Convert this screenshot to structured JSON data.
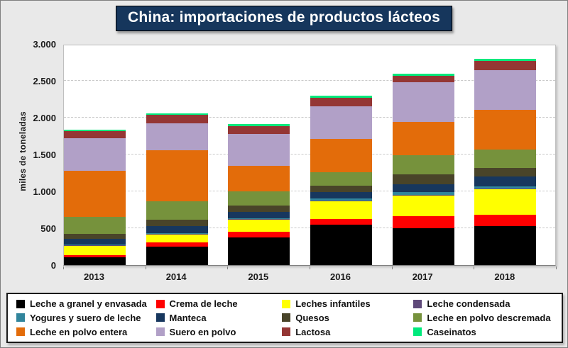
{
  "title": "China: importaciones de productos lácteos",
  "chart_data": {
    "type": "bar",
    "stacked": true,
    "title": "China: importaciones de productos lácteos",
    "ylabel": "miles de toneladas",
    "xlabel": "",
    "ylim": [
      0,
      3000
    ],
    "ytick_values": [
      0,
      500,
      1000,
      1500,
      2000,
      2500,
      3000
    ],
    "ytick_labels": [
      "0",
      "500",
      "1.000",
      "1.500",
      "2.000",
      "2.500",
      "3.000"
    ],
    "grid": "dashed-horizontal",
    "legend_position": "bottom",
    "categories": [
      "2013",
      "2014",
      "2015",
      "2016",
      "2017",
      "2018"
    ],
    "series": [
      {
        "name": "Leche a granel y envasada",
        "color": "#000000",
        "values": [
          105,
          250,
          375,
          550,
          500,
          530
        ]
      },
      {
        "name": "Crema de leche",
        "color": "#ff0000",
        "values": [
          30,
          60,
          75,
          75,
          160,
          155
        ]
      },
      {
        "name": "Leches infantiles",
        "color": "#ffff00",
        "values": [
          125,
          105,
          165,
          240,
          280,
          340
        ]
      },
      {
        "name": "Leche condensada",
        "color": "#5f497a",
        "values": [
          10,
          10,
          10,
          15,
          15,
          10
        ]
      },
      {
        "name": "Yogures y suero de leche",
        "color": "#31859c",
        "values": [
          10,
          10,
          10,
          25,
          40,
          30
        ]
      },
      {
        "name": "Manteca",
        "color": "#17375e",
        "values": [
          75,
          95,
          85,
          85,
          105,
          135
        ]
      },
      {
        "name": "Quesos",
        "color": "#494429",
        "values": [
          70,
          85,
          85,
          90,
          130,
          115
        ]
      },
      {
        "name": "Leche en polvo descremada",
        "color": "#76923c",
        "values": [
          225,
          250,
          200,
          185,
          260,
          250
        ]
      },
      {
        "name": "Leche en polvo entera",
        "color": "#e36c0a",
        "values": [
          630,
          690,
          345,
          450,
          450,
          540
        ]
      },
      {
        "name": "Suero en polvo",
        "color": "#b1a0c7",
        "values": [
          445,
          365,
          425,
          440,
          540,
          540
        ]
      },
      {
        "name": "Lactosa",
        "color": "#943634",
        "values": [
          95,
          115,
          115,
          115,
          90,
          125
        ]
      },
      {
        "name": "Caseinatos",
        "color": "#00e97c",
        "values": [
          15,
          20,
          20,
          30,
          30,
          30
        ]
      }
    ]
  },
  "colors": {
    "background": "#e9e9e9",
    "title_bg": "#16365c",
    "title_text": "#ffffff",
    "plot_bg": "#ffffff",
    "gridline": "#c9c9c9"
  }
}
